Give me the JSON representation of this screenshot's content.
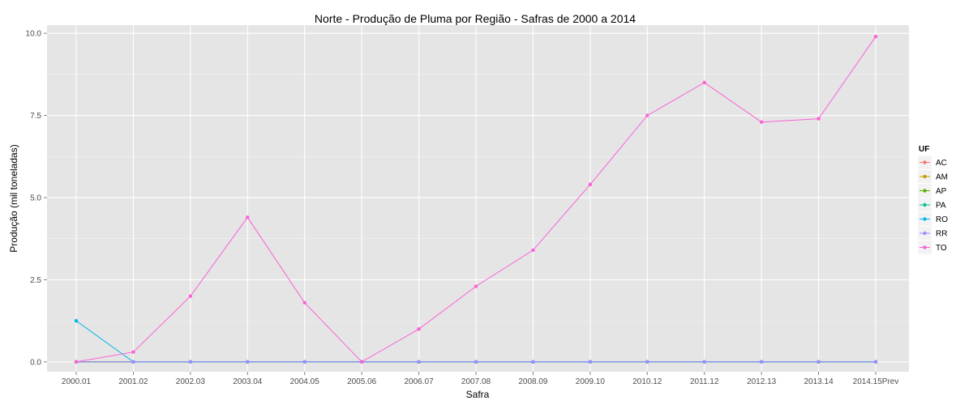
{
  "chart_data": {
    "type": "line",
    "title": "Norte  - Produção de Pluma por Região - Safras de 2000 a 2014",
    "xlabel": "Safra",
    "ylabel": "Produção (mil toneladas)",
    "categories": [
      "2000.01",
      "2001.02",
      "2002.03",
      "2003.04",
      "2004.05",
      "2005.06",
      "2006.07",
      "2007.08",
      "2008.09",
      "2009.10",
      "2010.12",
      "2011.12",
      "2012.13",
      "2013.14",
      "2014.15Prev"
    ],
    "ylim": [
      -0.3,
      10.25
    ],
    "yticks": [
      0.0,
      2.5,
      5.0,
      7.5,
      10.0
    ],
    "ytick_labels": [
      "0.0",
      "2.5",
      "5.0",
      "7.5",
      "10.0"
    ],
    "grid": true,
    "legend": {
      "title": "UF",
      "position": "right"
    },
    "series": [
      {
        "name": "AC",
        "color": "#F8766D",
        "values": [
          0,
          0,
          0,
          0,
          0,
          0,
          0,
          0,
          0,
          0,
          0,
          0,
          0,
          0,
          0
        ]
      },
      {
        "name": "AM",
        "color": "#C49A00",
        "values": [
          0,
          0,
          0,
          0,
          0,
          0,
          0,
          0,
          0,
          0,
          0,
          0,
          0,
          0,
          0
        ]
      },
      {
        "name": "AP",
        "color": "#53B400",
        "values": [
          0,
          0,
          0,
          0,
          0,
          0,
          0,
          0,
          0,
          0,
          0,
          0,
          0,
          0,
          0
        ]
      },
      {
        "name": "PA",
        "color": "#00C094",
        "values": [
          0,
          0,
          0,
          0,
          0,
          0,
          0,
          0,
          0,
          0,
          0,
          0,
          0,
          0,
          0
        ]
      },
      {
        "name": "RO",
        "color": "#00B6EB",
        "values": [
          1.25,
          0,
          0,
          0,
          0,
          0,
          0,
          0,
          0,
          0,
          0,
          0,
          0,
          0,
          0
        ]
      },
      {
        "name": "RR",
        "color": "#A58AFF",
        "values": [
          0,
          0,
          0,
          0,
          0,
          0,
          0,
          0,
          0,
          0,
          0,
          0,
          0,
          0,
          0
        ]
      },
      {
        "name": "TO",
        "color": "#FB61D7",
        "values": [
          0,
          0.3,
          2.0,
          4.4,
          1.8,
          0,
          1.0,
          2.3,
          3.4,
          5.4,
          7.5,
          8.5,
          7.3,
          7.4,
          9.9
        ]
      }
    ]
  }
}
